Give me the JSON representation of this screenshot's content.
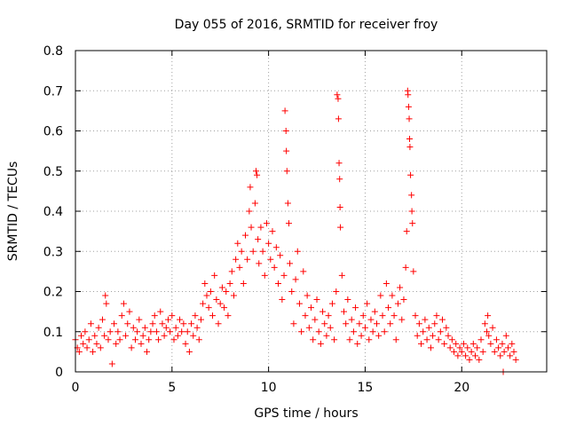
{
  "chart_data": {
    "type": "scatter",
    "title": "Day 055 of 2016, SRMTID for receiver froy",
    "xlabel": "GPS time / hours",
    "ylabel": "SRMTID / TECUs",
    "xlim": [
      0,
      24.4
    ],
    "ylim": [
      0,
      0.8
    ],
    "x_ticks": [
      0,
      5,
      10,
      15,
      20
    ],
    "x_tick_labels": [
      "0",
      "5",
      "10",
      "15",
      "20"
    ],
    "y_ticks": [
      0,
      0.1,
      0.2,
      0.3,
      0.4,
      0.5,
      0.6,
      0.7,
      0.8
    ],
    "y_tick_labels": [
      "0",
      "0.1",
      "0.2",
      "0.3",
      "0.4",
      "0.5",
      "0.6",
      "0.7",
      "0.8"
    ],
    "grid": true,
    "marker": "+",
    "color": "#ff0000",
    "series": [
      {
        "name": "SRMTID",
        "points": [
          [
            0.0,
            0.08
          ],
          [
            0.1,
            0.06
          ],
          [
            0.2,
            0.05
          ],
          [
            0.3,
            0.09
          ],
          [
            0.4,
            0.07
          ],
          [
            0.5,
            0.1
          ],
          [
            0.6,
            0.06
          ],
          [
            0.7,
            0.08
          ],
          [
            0.8,
            0.12
          ],
          [
            0.9,
            0.05
          ],
          [
            1.0,
            0.09
          ],
          [
            1.1,
            0.07
          ],
          [
            1.2,
            0.11
          ],
          [
            1.3,
            0.06
          ],
          [
            1.4,
            0.13
          ],
          [
            1.5,
            0.09
          ],
          [
            1.55,
            0.19
          ],
          [
            1.6,
            0.17
          ],
          [
            1.7,
            0.08
          ],
          [
            1.8,
            0.1
          ],
          [
            1.9,
            0.02
          ],
          [
            2.0,
            0.12
          ],
          [
            2.1,
            0.07
          ],
          [
            2.2,
            0.1
          ],
          [
            2.3,
            0.08
          ],
          [
            2.4,
            0.14
          ],
          [
            2.5,
            0.17
          ],
          [
            2.6,
            0.09
          ],
          [
            2.7,
            0.12
          ],
          [
            2.8,
            0.15
          ],
          [
            2.9,
            0.06
          ],
          [
            3.0,
            0.11
          ],
          [
            3.1,
            0.08
          ],
          [
            3.2,
            0.1
          ],
          [
            3.3,
            0.13
          ],
          [
            3.4,
            0.07
          ],
          [
            3.5,
            0.09
          ],
          [
            3.6,
            0.11
          ],
          [
            3.7,
            0.05
          ],
          [
            3.8,
            0.08
          ],
          [
            3.9,
            0.1
          ],
          [
            4.0,
            0.12
          ],
          [
            4.1,
            0.14
          ],
          [
            4.2,
            0.1
          ],
          [
            4.3,
            0.08
          ],
          [
            4.4,
            0.15
          ],
          [
            4.5,
            0.12
          ],
          [
            4.6,
            0.09
          ],
          [
            4.7,
            0.11
          ],
          [
            4.8,
            0.13
          ],
          [
            4.9,
            0.1
          ],
          [
            5.0,
            0.14
          ],
          [
            5.1,
            0.08
          ],
          [
            5.2,
            0.11
          ],
          [
            5.3,
            0.09
          ],
          [
            5.4,
            0.13
          ],
          [
            5.5,
            0.1
          ],
          [
            5.6,
            0.12
          ],
          [
            5.7,
            0.07
          ],
          [
            5.8,
            0.1
          ],
          [
            5.9,
            0.05
          ],
          [
            6.0,
            0.12
          ],
          [
            6.1,
            0.09
          ],
          [
            6.2,
            0.14
          ],
          [
            6.3,
            0.11
          ],
          [
            6.4,
            0.08
          ],
          [
            6.5,
            0.13
          ],
          [
            6.6,
            0.17
          ],
          [
            6.7,
            0.22
          ],
          [
            6.8,
            0.19
          ],
          [
            6.9,
            0.16
          ],
          [
            7.0,
            0.2
          ],
          [
            7.1,
            0.14
          ],
          [
            7.2,
            0.24
          ],
          [
            7.3,
            0.18
          ],
          [
            7.4,
            0.12
          ],
          [
            7.5,
            0.17
          ],
          [
            7.6,
            0.21
          ],
          [
            7.7,
            0.16
          ],
          [
            7.8,
            0.2
          ],
          [
            7.9,
            0.14
          ],
          [
            8.0,
            0.22
          ],
          [
            8.1,
            0.25
          ],
          [
            8.2,
            0.19
          ],
          [
            8.3,
            0.28
          ],
          [
            8.4,
            0.32
          ],
          [
            8.5,
            0.26
          ],
          [
            8.6,
            0.3
          ],
          [
            8.7,
            0.22
          ],
          [
            8.8,
            0.34
          ],
          [
            8.9,
            0.28
          ],
          [
            9.0,
            0.4
          ],
          [
            9.05,
            0.46
          ],
          [
            9.1,
            0.36
          ],
          [
            9.2,
            0.3
          ],
          [
            9.3,
            0.42
          ],
          [
            9.35,
            0.5
          ],
          [
            9.4,
            0.49
          ],
          [
            9.45,
            0.33
          ],
          [
            9.5,
            0.27
          ],
          [
            9.6,
            0.36
          ],
          [
            9.7,
            0.3
          ],
          [
            9.8,
            0.24
          ],
          [
            9.9,
            0.37
          ],
          [
            10.0,
            0.32
          ],
          [
            10.1,
            0.28
          ],
          [
            10.2,
            0.35
          ],
          [
            10.3,
            0.26
          ],
          [
            10.4,
            0.31
          ],
          [
            10.5,
            0.22
          ],
          [
            10.6,
            0.29
          ],
          [
            10.7,
            0.18
          ],
          [
            10.8,
            0.24
          ],
          [
            10.85,
            0.65
          ],
          [
            10.9,
            0.6
          ],
          [
            10.92,
            0.55
          ],
          [
            10.95,
            0.5
          ],
          [
            11.0,
            0.42
          ],
          [
            11.05,
            0.37
          ],
          [
            11.1,
            0.27
          ],
          [
            11.2,
            0.2
          ],
          [
            11.3,
            0.12
          ],
          [
            11.4,
            0.23
          ],
          [
            11.5,
            0.3
          ],
          [
            11.6,
            0.17
          ],
          [
            11.7,
            0.1
          ],
          [
            11.8,
            0.25
          ],
          [
            11.9,
            0.14
          ],
          [
            12.0,
            0.19
          ],
          [
            12.1,
            0.11
          ],
          [
            12.2,
            0.16
          ],
          [
            12.3,
            0.08
          ],
          [
            12.4,
            0.13
          ],
          [
            12.5,
            0.18
          ],
          [
            12.6,
            0.1
          ],
          [
            12.7,
            0.07
          ],
          [
            12.8,
            0.15
          ],
          [
            12.9,
            0.12
          ],
          [
            13.0,
            0.09
          ],
          [
            13.1,
            0.14
          ],
          [
            13.2,
            0.11
          ],
          [
            13.3,
            0.17
          ],
          [
            13.4,
            0.08
          ],
          [
            13.5,
            0.2
          ],
          [
            13.55,
            0.69
          ],
          [
            13.6,
            0.68
          ],
          [
            13.62,
            0.63
          ],
          [
            13.65,
            0.52
          ],
          [
            13.68,
            0.48
          ],
          [
            13.7,
            0.41
          ],
          [
            13.72,
            0.36
          ],
          [
            13.8,
            0.24
          ],
          [
            13.9,
            0.15
          ],
          [
            14.0,
            0.12
          ],
          [
            14.1,
            0.18
          ],
          [
            14.2,
            0.08
          ],
          [
            14.3,
            0.13
          ],
          [
            14.4,
            0.1
          ],
          [
            14.5,
            0.16
          ],
          [
            14.6,
            0.07
          ],
          [
            14.7,
            0.12
          ],
          [
            14.8,
            0.09
          ],
          [
            14.9,
            0.14
          ],
          [
            15.0,
            0.11
          ],
          [
            15.1,
            0.17
          ],
          [
            15.2,
            0.08
          ],
          [
            15.3,
            0.13
          ],
          [
            15.4,
            0.1
          ],
          [
            15.5,
            0.15
          ],
          [
            15.6,
            0.12
          ],
          [
            15.7,
            0.09
          ],
          [
            15.8,
            0.19
          ],
          [
            15.9,
            0.14
          ],
          [
            16.0,
            0.1
          ],
          [
            16.1,
            0.22
          ],
          [
            16.2,
            0.16
          ],
          [
            16.3,
            0.12
          ],
          [
            16.4,
            0.19
          ],
          [
            16.5,
            0.14
          ],
          [
            16.6,
            0.08
          ],
          [
            16.7,
            0.17
          ],
          [
            16.8,
            0.21
          ],
          [
            16.9,
            0.13
          ],
          [
            17.0,
            0.18
          ],
          [
            17.1,
            0.26
          ],
          [
            17.15,
            0.35
          ],
          [
            17.2,
            0.7
          ],
          [
            17.22,
            0.69
          ],
          [
            17.25,
            0.66
          ],
          [
            17.28,
            0.63
          ],
          [
            17.3,
            0.58
          ],
          [
            17.32,
            0.56
          ],
          [
            17.35,
            0.49
          ],
          [
            17.4,
            0.44
          ],
          [
            17.42,
            0.4
          ],
          [
            17.45,
            0.37
          ],
          [
            17.5,
            0.25
          ],
          [
            17.6,
            0.14
          ],
          [
            17.7,
            0.09
          ],
          [
            17.8,
            0.12
          ],
          [
            17.9,
            0.07
          ],
          [
            18.0,
            0.1
          ],
          [
            18.1,
            0.13
          ],
          [
            18.2,
            0.08
          ],
          [
            18.3,
            0.11
          ],
          [
            18.4,
            0.06
          ],
          [
            18.5,
            0.09
          ],
          [
            18.6,
            0.12
          ],
          [
            18.7,
            0.14
          ],
          [
            18.8,
            0.08
          ],
          [
            18.9,
            0.1
          ],
          [
            19.0,
            0.13
          ],
          [
            19.1,
            0.07
          ],
          [
            19.2,
            0.11
          ],
          [
            19.3,
            0.09
          ],
          [
            19.4,
            0.06
          ],
          [
            19.5,
            0.08
          ],
          [
            19.6,
            0.05
          ],
          [
            19.7,
            0.07
          ],
          [
            19.8,
            0.04
          ],
          [
            19.9,
            0.06
          ],
          [
            20.0,
            0.05
          ],
          [
            20.1,
            0.07
          ],
          [
            20.2,
            0.04
          ],
          [
            20.3,
            0.06
          ],
          [
            20.4,
            0.03
          ],
          [
            20.5,
            0.05
          ],
          [
            20.6,
            0.07
          ],
          [
            20.7,
            0.04
          ],
          [
            20.8,
            0.06
          ],
          [
            20.9,
            0.03
          ],
          [
            21.0,
            0.08
          ],
          [
            21.1,
            0.05
          ],
          [
            21.2,
            0.12
          ],
          [
            21.3,
            0.1
          ],
          [
            21.35,
            0.14
          ],
          [
            21.4,
            0.09
          ],
          [
            21.5,
            0.07
          ],
          [
            21.6,
            0.11
          ],
          [
            21.7,
            0.05
          ],
          [
            21.8,
            0.08
          ],
          [
            21.9,
            0.06
          ],
          [
            22.0,
            0.04
          ],
          [
            22.1,
            0.07
          ],
          [
            22.15,
            0.0
          ],
          [
            22.2,
            0.05
          ],
          [
            22.3,
            0.09
          ],
          [
            22.4,
            0.06
          ],
          [
            22.5,
            0.04
          ],
          [
            22.6,
            0.07
          ],
          [
            22.7,
            0.05
          ],
          [
            22.8,
            0.03
          ]
        ]
      }
    ]
  }
}
